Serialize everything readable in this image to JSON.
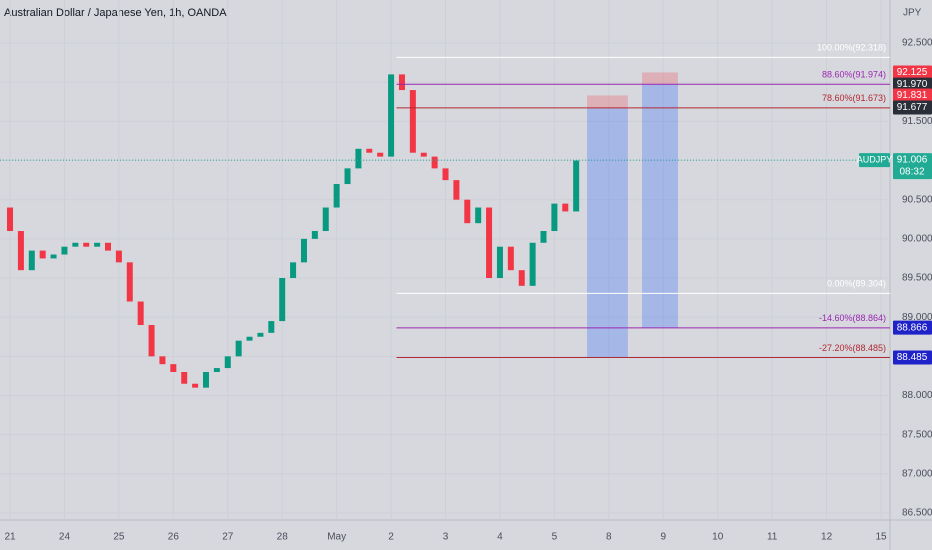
{
  "chart_data": {
    "type": "candlestick",
    "title": "Australian Dollar / Japanese Yen, 1h, OANDA",
    "currency": "JPY",
    "series": [
      {
        "name": "AUDJPY",
        "up_color": "#089981",
        "down_color": "#f23645",
        "x": [
          -0.2,
          0,
          0.2,
          0.4,
          0.6,
          0.8,
          1,
          1.2,
          1.4,
          1.6,
          1.8,
          2,
          2.2,
          2.4,
          2.6,
          2.8,
          3,
          3.2,
          3.4,
          3.6,
          3.8,
          4,
          4.2,
          4.4,
          4.6,
          4.8,
          5,
          5.2,
          5.4,
          5.6,
          5.8,
          6,
          6.2,
          6.4,
          6.6,
          6.8,
          7,
          7.2,
          7.4,
          7.6,
          7.8,
          8,
          8.2,
          8.4,
          8.6,
          8.8,
          9,
          9.2,
          9.4,
          9.6,
          9.8,
          10,
          10.2,
          10.4
        ],
        "values": [
          90.4,
          90.1,
          89.6,
          89.85,
          89.75,
          89.8,
          89.9,
          89.95,
          89.9,
          89.95,
          89.85,
          89.7,
          89.2,
          88.9,
          88.5,
          88.4,
          88.3,
          88.15,
          88.1,
          88.3,
          88.35,
          88.5,
          88.7,
          88.75,
          88.8,
          88.95,
          89.5,
          89.7,
          90.0,
          90.1,
          90.4,
          90.7,
          90.9,
          91.15,
          91.1,
          91.05,
          92.1,
          91.9,
          91.1,
          91.05,
          90.9,
          90.75,
          90.5,
          90.2,
          90.4,
          89.5,
          89.9,
          89.6,
          89.4,
          89.95,
          90.1,
          90.45,
          90.35,
          91.0
        ]
      }
    ],
    "xlim": [
      -0.184,
      16.165
    ],
    "xticks": [
      {
        "value": 0,
        "label": "21"
      },
      {
        "value": 1,
        "label": "24"
      },
      {
        "value": 2,
        "label": "25"
      },
      {
        "value": 3,
        "label": "26"
      },
      {
        "value": 4,
        "label": "27"
      },
      {
        "value": 5,
        "label": "28"
      },
      {
        "value": 6,
        "label": "May"
      },
      {
        "value": 7,
        "label": "2"
      },
      {
        "value": 8,
        "label": "3"
      },
      {
        "value": 9,
        "label": "4"
      },
      {
        "value": 10,
        "label": "5"
      },
      {
        "value": 11,
        "label": "8"
      },
      {
        "value": 12,
        "label": "9"
      },
      {
        "value": 13,
        "label": "10"
      },
      {
        "value": 14,
        "label": "11"
      },
      {
        "value": 15,
        "label": "12"
      },
      {
        "value": 16,
        "label": "15"
      }
    ],
    "ylim": [
      86.41,
      93.05
    ],
    "yticks": [
      {
        "value": 86.5,
        "label": "86.500"
      },
      {
        "value": 87,
        "label": "87.000"
      },
      {
        "value": 87.5,
        "label": "87.500"
      },
      {
        "value": 88,
        "label": "88.000"
      },
      {
        "value": 88.5,
        "label": "88.500"
      },
      {
        "value": 89,
        "label": "89.000"
      },
      {
        "value": 89.5,
        "label": "89.500"
      },
      {
        "value": 90,
        "label": "90.000"
      },
      {
        "value": 90.5,
        "label": "90.500"
      },
      {
        "value": 91,
        "label": "91.000"
      },
      {
        "value": 91.5,
        "label": "91.500"
      },
      {
        "value": 92,
        "label": "92.000"
      },
      {
        "value": 92.5,
        "label": "92.500"
      }
    ],
    "grid": true,
    "fib_start_x": 7.1,
    "fib_levels": [
      {
        "label": "100.00%(92.318)",
        "price": 92.318,
        "color": "#ffffff"
      },
      {
        "label": "88.60%(91.974)",
        "price": 91.974,
        "color": "#9c27b0"
      },
      {
        "label": "78.60%(91.673)",
        "price": 91.673,
        "color": "#b22833"
      },
      {
        "label": "0.00%(89.304)",
        "price": 89.304,
        "color": "#ffffff"
      },
      {
        "label": "-14.60%(88.864)",
        "price": 88.864,
        "color": "#9c27b0"
      },
      {
        "label": "-27.20%(88.485)",
        "price": 88.485,
        "color": "#b22833"
      }
    ],
    "positions": [
      {
        "x": [
          10.6,
          11.35
        ],
        "entry": 91.673,
        "stop": 91.831,
        "target": 88.485
      },
      {
        "x": [
          11.61,
          12.27
        ],
        "entry": 91.974,
        "stop": 92.125,
        "target": 88.866
      }
    ],
    "stop_color": "rgba(242,54,69,0.25)",
    "target_color": "rgba(41,98,255,0.28)",
    "price_tags": [
      {
        "value": 92.125,
        "label": "92.125",
        "color": "#f23645"
      },
      {
        "value": 91.97,
        "label": "91.970",
        "color": "#2a2e39"
      },
      {
        "value": 91.831,
        "label": "91.831",
        "color": "#f23645"
      },
      {
        "value": 91.677,
        "label": "91.677",
        "color": "#2a2e39"
      },
      {
        "value": 91.006,
        "label": "91.006",
        "sublabel": "08:32",
        "symbol": "AUDJPY",
        "color": "#22ab94"
      },
      {
        "value": 88.866,
        "label": "88.866",
        "color": "#1e22c8"
      },
      {
        "value": 88.485,
        "label": "88.485",
        "color": "#1e22c8"
      }
    ]
  }
}
